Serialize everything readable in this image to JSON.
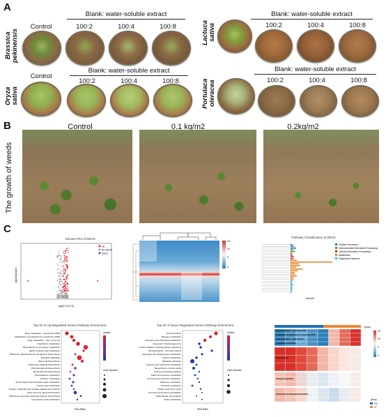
{
  "panels": {
    "A": {
      "letter": "A",
      "species": [
        "Brassica pekinensis",
        "Lactuca sativa",
        "Oryza sativa",
        "Portulaca oleracea"
      ],
      "group_header": "Blank: water-soluble extract",
      "control": "Control",
      "ratios": [
        "100:2",
        "100:4",
        "100:8"
      ]
    },
    "B": {
      "letter": "B",
      "side_label": "The growth of weeds",
      "conditions": [
        "Control",
        "0.1 kg/m2",
        "0.2kg/m2"
      ]
    },
    "C": {
      "letter": "C",
      "volcano_title": "Volcano Plot of DEGS",
      "volcano_xlabel": "log2(LT1/LCK)",
      "volcano_ylabel": "-log10(Qvalue)",
      "volcano_legend": [
        "Up",
        "No-DEGS",
        "Down"
      ],
      "pathway_title": "Pathway Classification of DEGs",
      "pathway_xlabel": "Number",
      "pathway_legend": [
        "Cellular Processes",
        "Environmental Information Processing",
        "Genetic Information Processing",
        "Metabolism",
        "Organismal Systems"
      ],
      "up_title": "Top 20 of Up-Regulated Genes Pathway Enrichment",
      "down_title": "Top 20 of Down-Regulated Genes Pathway Enrichment",
      "rich_ratio": "Rich Ratio",
      "qvalue": "Qvalue",
      "gene_number": "Gene Number",
      "up_terms": [
        "Drug metabolism - cytochrome P450",
        "Metabolism of xenobiotics by cytochrome P450",
        "Drug metabolism - other enzymes",
        "Glutathione metabolism",
        "Biosynthesis of secondary metabolites",
        "alpha-Linolenic acid metabolism",
        "Stilbenoid, diarylheptanoid and gingerol biosynthesis",
        "Metabolic pathways",
        "Flavonoid biosynthesis",
        "Isoquinoline alkaloid biosynthesis",
        "Phenylpropanoid biosynthesis",
        "Benzoxazinoid biosynthesis",
        "Phenylalanine metabolism",
        "Tyrosine metabolism",
        "Amino sugar and nucleotide sugar metabolism",
        "Linoleic acid metabolism",
        "Tropane, piperidine and pyridine alkaloid biosynthesis",
        "Plant hormone signal transduction",
        "Ubiquinone and other terpenoid-quinone biosynthesis",
        "Cyanoamino acid metabolism"
      ],
      "down_terms": [
        "Photosynthesis",
        "Nitrogen metabolism",
        "Porphyrin and chlorophyll metabolism",
        "Glycolysis / Gluconeogenesis",
        "Carbon fixation in photosynthetic organisms",
        "Photosynthesis - antenna proteins",
        "Glyoxylate and dicarboxylate metabolism",
        "Carbon metabolism",
        "Metabolic pathways",
        "Cysteine and methionine metabolism",
        "Biosynthesis of amino acids",
        "Pentose phosphate pathway",
        "Starch and sucrose metabolism",
        "Fructose and mannose metabolism",
        "Galactose metabolism",
        "Pyruvate metabolism",
        "Citrate cycle (TCA cycle)",
        "Limonene and pinene degradation",
        "Monobactam biosynthesis",
        "Sulfur metabolism"
      ],
      "hm2_rows": [
        "Drug metabolism - cytochrome P450",
        "Metabolism of xenobiotics by cytochrome P450",
        "Drug metabolism - other enzymes",
        "Glutathione metabolism",
        "Photosynthesis",
        "Nitrogen metabolism",
        "Porphyrin and chlorophyll metabolism"
      ],
      "group_legend": [
        "group",
        "CK",
        "LT"
      ],
      "colorbar1": [
        "15",
        "10",
        "5",
        "0"
      ],
      "colorbar2": [
        "15",
        "10",
        "5",
        "0"
      ]
    }
  },
  "colors": {
    "soil": "#8a6a45",
    "plant": "#7d9a3e",
    "heat_red": "#d7302a",
    "heat_blue": "#2c7fb8",
    "up_red": "#e0202a",
    "down_blue": "#1f5fb0",
    "metabolism_orange": "#e8872c",
    "group_blue": "#1f6fb2",
    "group_orange": "#e68c33"
  }
}
